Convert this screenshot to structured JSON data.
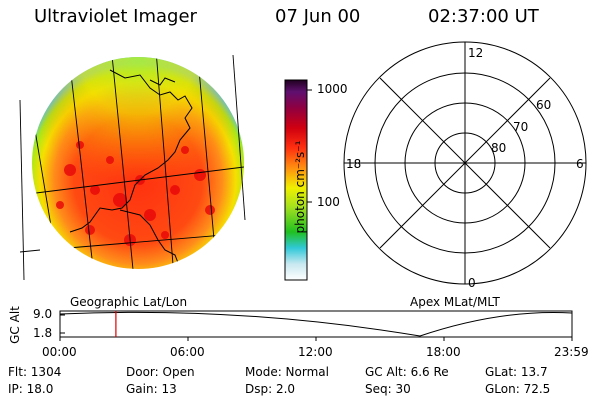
{
  "header": {
    "instrument": "Ultraviolet Imager",
    "date": "07 Jun 00",
    "time": "02:37:00 UT"
  },
  "colorbar": {
    "unit_label": "photon cm⁻²s⁻¹",
    "tick_high": "1000",
    "tick_low": "100"
  },
  "polar": {
    "mlt_top": "12",
    "mlt_left": "18",
    "mlt_right": "6",
    "mlt_bottom": "0",
    "lat_60": "60",
    "lat_70": "70",
    "lat_80": "80"
  },
  "panel_labels": {
    "left": "Geographic Lat/Lon",
    "right": "Apex MLat/MLT"
  },
  "altitude_plot": {
    "ylabel": "GC Alt",
    "y_high": "9.0",
    "y_low": "1.8",
    "x_ticks": [
      "00:00",
      "06:00",
      "12:00",
      "18:00",
      "23:59"
    ],
    "current_time_hours": 2.62,
    "marker_color": "#e00000"
  },
  "info": {
    "flt": "Flt:  1304",
    "ip": "IP:  18.0",
    "door": "Door:  Open",
    "gain": "Gain:  13",
    "mode": "Mode:  Normal",
    "dsp": "Dsp:    2.0",
    "gcalt": "GC Alt:  6.6 Re",
    "seq": "Seq:  30",
    "glat": "GLat:   13.7",
    "glon": "GLon:   72.5"
  }
}
